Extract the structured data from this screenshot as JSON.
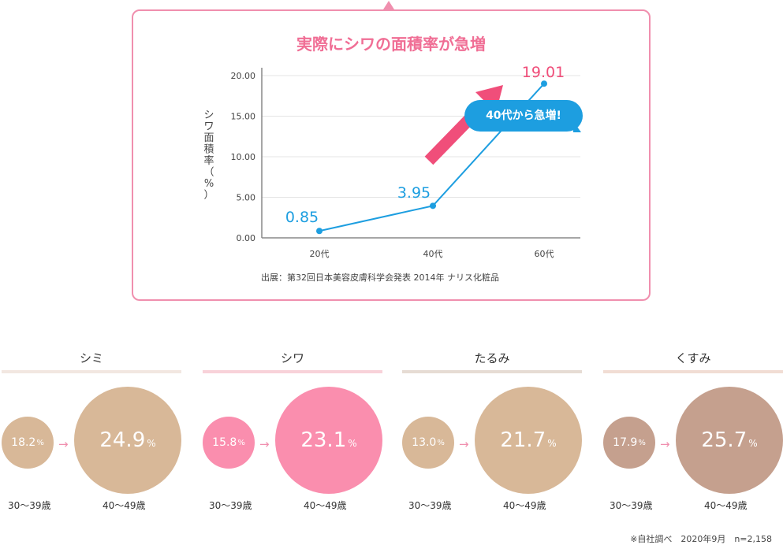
{
  "card": {
    "title": "実際にシワの面積率が急増",
    "source": "出展：第32回日本美容皮膚科学会発表 2014年 ナリス化粧品",
    "callout": "40代から急増!"
  },
  "chart_data": {
    "type": "line",
    "title": "実際にシワの面積率が急増",
    "ylabel": "シワ面積率（%）",
    "xlabel": "",
    "categories": [
      "20代",
      "40代",
      "60代"
    ],
    "values": [
      0.85,
      3.95,
      19.01
    ],
    "value_labels": [
      "0.85",
      "3.95",
      "19.01"
    ],
    "yticks": [
      "0.00",
      "5.00",
      "10.00",
      "15.00",
      "20.00"
    ],
    "ylim": [
      0,
      20
    ],
    "grid": true,
    "line_color": "#1d9ee0",
    "highlight_color": "#f04e7a"
  },
  "groups": [
    {
      "title": "シミ",
      "small_value": "18.2",
      "big_value": "24.9",
      "unit": "%",
      "small_age": "30〜39歳",
      "big_age": "40〜49歳",
      "line_color": "#f2e7e1",
      "small_color": "#d8b898",
      "big_color": "#d8b898"
    },
    {
      "title": "シワ",
      "small_value": "15.8",
      "big_value": "23.1",
      "unit": "%",
      "small_age": "30〜39歳",
      "big_age": "40〜49歳",
      "line_color": "#f8d2d9",
      "small_color": "#fa8eae",
      "big_color": "#fa8eae"
    },
    {
      "title": "たるみ",
      "small_value": "13.0",
      "big_value": "21.7",
      "unit": "%",
      "small_age": "30〜39歳",
      "big_age": "40〜49歳",
      "line_color": "#e6dcd4",
      "small_color": "#d8b898",
      "big_color": "#d8b898"
    },
    {
      "title": "くすみ",
      "small_value": "17.9",
      "big_value": "25.7",
      "unit": "%",
      "small_age": "30〜39歳",
      "big_age": "40〜49歳",
      "line_color": "#f1ddd4",
      "small_color": "#c5a08e",
      "big_color": "#c5a08e"
    }
  ],
  "footnote": "※自社調べ　2020年9月　n=2,158",
  "arrow_glyph": "→"
}
